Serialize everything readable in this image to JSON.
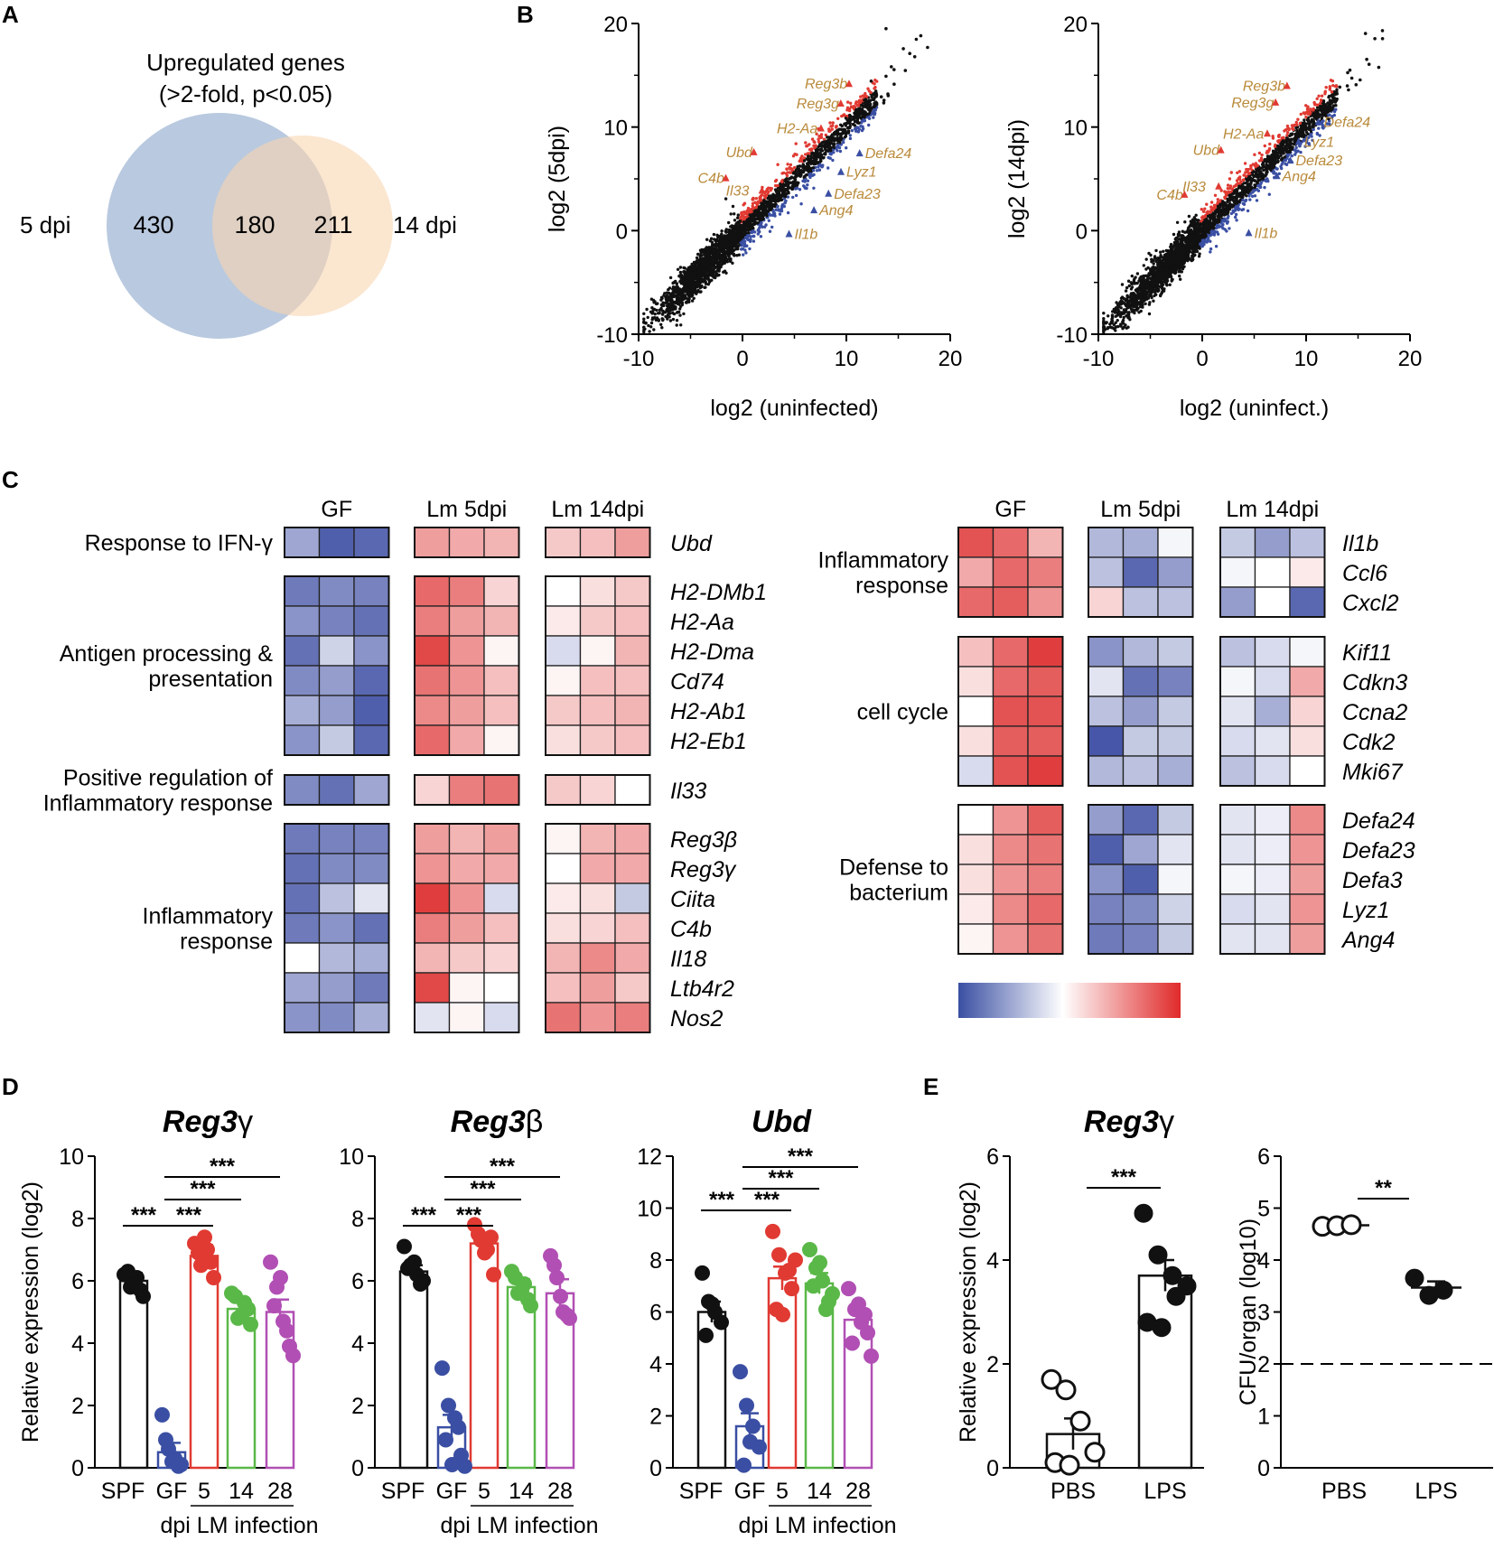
{
  "panels": {
    "A": "A",
    "B": "B",
    "C": "C",
    "D": "D",
    "E": "E"
  },
  "colors": {
    "blue": "#3a4fa3",
    "red": "#e03a32",
    "green": "#5ab848",
    "purple": "#b14fb4",
    "black": "#111111",
    "venn_blue": "#b9c9df",
    "venn_orange": "#f8d5b0",
    "gene_label": "#b98a3a"
  },
  "venn": {
    "title_line1": "Upregulated genes",
    "title_line2": "(>2-fold, p<0.05)",
    "left_label": "5 dpi",
    "right_label": "14 dpi",
    "left_only": "430",
    "overlap": "180",
    "right_only": "211"
  },
  "scatter": [
    {
      "ylabel": "log2 (5dpi)",
      "xlabel": "log2 (uninfected)",
      "xticks": [
        "-10",
        "0",
        "10",
        "20"
      ],
      "yticks": [
        "20",
        "10",
        "0",
        "-10"
      ],
      "labels": [
        {
          "text": "Reg3b",
          "x": 6.0,
          "y": 13.7
        },
        {
          "text": "Reg3g",
          "x": 5.2,
          "y": 11.8
        },
        {
          "text": "H2-Aa",
          "x": 3.3,
          "y": 9.4
        },
        {
          "text": "Ubd",
          "x": -1.6,
          "y": 7.1
        },
        {
          "text": "C4b",
          "x": -4.3,
          "y": 4.6
        },
        {
          "text": "Il33",
          "x": -1.6,
          "y": 3.4
        },
        {
          "text": "Defa24",
          "x": 11.8,
          "y": 7.0
        },
        {
          "text": "Lyz1",
          "x": 10.0,
          "y": 5.2
        },
        {
          "text": "Defa23",
          "x": 8.8,
          "y": 3.1
        },
        {
          "text": "Ang4",
          "x": 7.4,
          "y": 1.5
        },
        {
          "text": "Il1b",
          "x": 5.0,
          "y": -0.8
        }
      ]
    },
    {
      "ylabel": "log2 (14dpi)",
      "xlabel": "log2 (uninfect.)",
      "xticks": [
        "-10",
        "0",
        "10",
        "20"
      ],
      "yticks": [
        "20",
        "10",
        "0",
        "-10"
      ],
      "labels": [
        {
          "text": "Reg3b",
          "x": 3.9,
          "y": 13.5
        },
        {
          "text": "Reg3g",
          "x": 2.8,
          "y": 11.9
        },
        {
          "text": "H2-Aa",
          "x": 2.0,
          "y": 8.9
        },
        {
          "text": "Ubd",
          "x": -0.9,
          "y": 7.3
        },
        {
          "text": "C4b",
          "x": -4.4,
          "y": 3.0
        },
        {
          "text": "Il33",
          "x": -1.9,
          "y": 3.8
        },
        {
          "text": "Defa24",
          "x": 11.7,
          "y": 10.0
        },
        {
          "text": "Lyz1",
          "x": 9.8,
          "y": 8.1
        },
        {
          "text": "Defa23",
          "x": 9.0,
          "y": 6.3
        },
        {
          "text": "Ang4",
          "x": 7.7,
          "y": 4.8
        },
        {
          "text": "Il1b",
          "x": 5.0,
          "y": -0.7
        }
      ]
    }
  ],
  "heatmap": {
    "left": {
      "groups": [
        "GF",
        "Lm 5dpi",
        "Lm 14dpi"
      ],
      "blocks": [
        {
          "label": [
            "Response to IFN-γ"
          ],
          "rows": [
            {
              "gene": "Ubd",
              "v": [
                -0.5,
                -0.9,
                -0.85,
                0.45,
                0.4,
                0.35,
                0.25,
                0.3,
                0.45
              ]
            }
          ]
        },
        {
          "label": [
            "Antigen processing &",
            "presentation"
          ],
          "rows": [
            {
              "gene": "H2-DMb1",
              "v": [
                -0.75,
                -0.65,
                -0.7,
                0.7,
                0.6,
                0.2,
                0.0,
                0.15,
                0.25
              ]
            },
            {
              "gene": "H2-Aa",
              "v": [
                -0.6,
                -0.7,
                -0.8,
                0.6,
                0.45,
                0.35,
                0.1,
                0.25,
                0.3
              ]
            },
            {
              "gene": "H2-Dma",
              "v": [
                -0.8,
                -0.25,
                -0.6,
                0.85,
                0.5,
                0.05,
                -0.2,
                0.05,
                0.35
              ]
            },
            {
              "gene": "Cd74",
              "v": [
                -0.65,
                -0.55,
                -0.85,
                0.65,
                0.5,
                0.3,
                0.05,
                0.3,
                0.3
              ]
            },
            {
              "gene": "H2-Ab1",
              "v": [
                -0.45,
                -0.55,
                -0.9,
                0.55,
                0.45,
                0.3,
                0.25,
                0.3,
                0.35
              ]
            },
            {
              "gene": "H2-Eb1",
              "v": [
                -0.6,
                -0.3,
                -0.85,
                0.7,
                0.4,
                0.05,
                0.15,
                0.25,
                0.3
              ]
            }
          ]
        },
        {
          "label": [
            "Positive regulation of",
            "Inflammatory response"
          ],
          "rows": [
            {
              "gene": "Il33",
              "v": [
                -0.65,
                -0.8,
                -0.5,
                0.2,
                0.6,
                0.65,
                0.25,
                0.2,
                0.0
              ]
            }
          ]
        },
        {
          "label": [
            "Inflammatory",
            "response"
          ],
          "rows": [
            {
              "gene": "Reg3β",
              "v": [
                -0.75,
                -0.7,
                -0.7,
                0.45,
                0.35,
                0.45,
                0.05,
                0.35,
                0.4
              ]
            },
            {
              "gene": "Reg3γ",
              "v": [
                -0.8,
                -0.65,
                -0.65,
                0.5,
                0.4,
                0.4,
                0.0,
                0.4,
                0.4
              ]
            },
            {
              "gene": "Ciita",
              "v": [
                -0.8,
                -0.35,
                -0.15,
                0.9,
                0.5,
                -0.2,
                0.1,
                0.15,
                -0.3
              ]
            },
            {
              "gene": "C4b",
              "v": [
                -0.75,
                -0.6,
                -0.8,
                0.6,
                0.45,
                0.3,
                0.15,
                0.2,
                0.3
              ]
            },
            {
              "gene": "Il18",
              "v": [
                0.0,
                -0.4,
                -0.45,
                0.35,
                0.25,
                0.2,
                0.35,
                0.55,
                0.4
              ]
            },
            {
              "gene": "Ltb4r2",
              "v": [
                -0.5,
                -0.55,
                -0.75,
                0.85,
                0.05,
                0.0,
                0.3,
                0.45,
                0.25
              ]
            },
            {
              "gene": "Nos2",
              "v": [
                -0.6,
                -0.65,
                -0.45,
                -0.15,
                0.05,
                -0.2,
                0.65,
                0.5,
                0.6
              ]
            }
          ]
        }
      ]
    },
    "right": {
      "groups": [
        "GF",
        "Lm 5dpi",
        "Lm 14dpi"
      ],
      "blocks": [
        {
          "label": [
            "Inflammatory",
            "response"
          ],
          "rows": [
            {
              "gene": "Il1b",
              "v": [
                0.8,
                0.7,
                0.35,
                -0.4,
                -0.45,
                -0.05,
                -0.3,
                -0.55,
                -0.35
              ]
            },
            {
              "gene": "Ccl6",
              "v": [
                0.4,
                0.7,
                0.6,
                -0.35,
                -0.85,
                -0.55,
                -0.05,
                0.0,
                0.1
              ]
            },
            {
              "gene": "Cxcl2",
              "v": [
                0.7,
                0.75,
                0.5,
                0.2,
                -0.35,
                -0.35,
                -0.55,
                0.0,
                -0.85
              ]
            }
          ]
        },
        {
          "label": [
            "cell cycle"
          ],
          "rows": [
            {
              "gene": "Kif11",
              "v": [
                0.3,
                0.7,
                0.9,
                -0.6,
                -0.4,
                -0.3,
                -0.35,
                -0.2,
                -0.05
              ]
            },
            {
              "gene": "Cdkn3",
              "v": [
                0.15,
                0.7,
                0.75,
                -0.15,
                -0.8,
                -0.7,
                -0.05,
                -0.2,
                0.4
              ]
            },
            {
              "gene": "Ccna2",
              "v": [
                0.0,
                0.8,
                0.8,
                -0.35,
                -0.55,
                -0.3,
                -0.15,
                -0.45,
                0.2
              ]
            },
            {
              "gene": "Cdk2",
              "v": [
                0.15,
                0.75,
                0.75,
                -0.95,
                -0.3,
                -0.3,
                -0.2,
                -0.15,
                0.15
              ]
            },
            {
              "gene": "Mki67",
              "v": [
                -0.2,
                0.8,
                0.9,
                -0.4,
                -0.35,
                -0.45,
                -0.35,
                -0.2,
                0.0
              ]
            }
          ]
        },
        {
          "label": [
            "Defense to",
            "bacterium"
          ],
          "rows": [
            {
              "gene": "Defa24",
              "v": [
                0.0,
                0.5,
                0.75,
                -0.55,
                -0.85,
                -0.3,
                -0.15,
                -0.1,
                0.55
              ]
            },
            {
              "gene": "Defa23",
              "v": [
                0.15,
                0.55,
                0.65,
                -0.9,
                -0.5,
                -0.15,
                -0.15,
                -0.1,
                0.5
              ]
            },
            {
              "gene": "Defa3",
              "v": [
                0.15,
                0.5,
                0.6,
                -0.6,
                -0.9,
                -0.05,
                -0.05,
                -0.1,
                0.45
              ]
            },
            {
              "gene": "Lyz1",
              "v": [
                0.1,
                0.55,
                0.7,
                -0.7,
                -0.65,
                -0.25,
                -0.2,
                -0.15,
                0.5
              ]
            },
            {
              "gene": "Ang4",
              "v": [
                0.05,
                0.5,
                0.65,
                -0.75,
                -0.7,
                -0.3,
                -0.15,
                -0.15,
                0.45
              ]
            }
          ]
        }
      ]
    }
  },
  "chart_data": [
    {
      "type": "bar",
      "title": "Reg3γ",
      "ylabel": "Relative expression (log2)",
      "ylim": [
        0,
        10
      ],
      "yticks": [
        "0",
        "2",
        "4",
        "6",
        "8",
        "10"
      ],
      "categories": [
        "SPF",
        "GF",
        "5",
        "14",
        "28"
      ],
      "xlabel": "dpi LM infection",
      "values": [
        6.0,
        0.5,
        6.8,
        5.1,
        5.0
      ],
      "errors": [
        0.25,
        0.3,
        0.35,
        0.3,
        0.4
      ],
      "points": [
        [
          6.2,
          5.8,
          6.1,
          5.5,
          6.3,
          5.9,
          5.7
        ],
        [
          1.7,
          0.6,
          0.3,
          0.1,
          0.9,
          0.2,
          0.05
        ],
        [
          7.2,
          6.5,
          7.0,
          6.1,
          6.9,
          7.4,
          6.6
        ],
        [
          5.6,
          4.8,
          5.3,
          4.6,
          5.5,
          4.9,
          5.1
        ],
        [
          6.6,
          5.8,
          4.7,
          3.9,
          5.2,
          6.1,
          4.4,
          3.6
        ]
      ],
      "significance": [
        {
          "from": 0,
          "to": 1,
          "text": "***"
        },
        {
          "from": 1,
          "to": 2,
          "text": "***"
        },
        {
          "from": 1,
          "to": 3,
          "text": "***"
        },
        {
          "from": 1,
          "to": 4,
          "text": "***"
        }
      ]
    },
    {
      "type": "bar",
      "title": "Reg3β",
      "ylabel": "",
      "ylim": [
        0,
        10
      ],
      "yticks": [
        "0",
        "2",
        "4",
        "6",
        "8",
        "10"
      ],
      "categories": [
        "SPF",
        "GF",
        "5",
        "14",
        "28"
      ],
      "xlabel": "dpi LM infection",
      "values": [
        6.3,
        1.3,
        7.2,
        5.8,
        5.6
      ],
      "errors": [
        0.2,
        0.4,
        0.3,
        0.25,
        0.45
      ],
      "points": [
        [
          7.1,
          6.5,
          6.2,
          6.0,
          6.4,
          6.6,
          5.9
        ],
        [
          3.2,
          2.0,
          1.6,
          0.4,
          0.9,
          0.1,
          1.3,
          0.05
        ],
        [
          7.8,
          7.3,
          7.0,
          6.2,
          7.5,
          6.9,
          7.4
        ],
        [
          6.3,
          5.6,
          5.9,
          5.2,
          6.1,
          5.7,
          5.4
        ],
        [
          6.8,
          6.1,
          5.0,
          4.8,
          6.5,
          5.5,
          4.9
        ]
      ],
      "significance": [
        {
          "from": 0,
          "to": 1,
          "text": "***"
        },
        {
          "from": 1,
          "to": 2,
          "text": "***"
        },
        {
          "from": 1,
          "to": 3,
          "text": "***"
        },
        {
          "from": 1,
          "to": 4,
          "text": "***"
        }
      ]
    },
    {
      "type": "bar",
      "title": "Ubd",
      "ylabel": "",
      "ylim": [
        0,
        12
      ],
      "yticks": [
        "0",
        "2",
        "4",
        "6",
        "8",
        "10",
        "12"
      ],
      "categories": [
        "SPF",
        "GF",
        "5",
        "14",
        "28"
      ],
      "xlabel": "dpi LM infection",
      "values": [
        6.0,
        1.6,
        7.3,
        7.1,
        5.7
      ],
      "errors": [
        0.4,
        0.5,
        0.45,
        0.4,
        0.35
      ],
      "points": [
        [
          7.5,
          6.4,
          6.0,
          5.6,
          5.1,
          6.3
        ],
        [
          3.7,
          2.4,
          1.6,
          0.8,
          0.1,
          1.0
        ],
        [
          9.1,
          8.2,
          7.5,
          6.9,
          6.1,
          5.9,
          7.6,
          8.0
        ],
        [
          8.4,
          7.7,
          7.2,
          6.4,
          7.0,
          7.9,
          6.1,
          6.7
        ],
        [
          6.9,
          6.1,
          5.6,
          5.2,
          4.8,
          6.3,
          5.9,
          4.3
        ]
      ],
      "significance": [
        {
          "from": 0,
          "to": 1,
          "text": "***"
        },
        {
          "from": 1,
          "to": 2,
          "text": "***"
        },
        {
          "from": 1,
          "to": 3,
          "text": "***"
        },
        {
          "from": 1,
          "to": 4,
          "text": "***"
        }
      ]
    },
    {
      "type": "bar",
      "title": "Reg3γ",
      "ylabel": "Relative expression (log2)",
      "ylim": [
        0,
        6
      ],
      "yticks": [
        "0",
        "2",
        "4",
        "6"
      ],
      "categories": [
        "PBS",
        "LPS"
      ],
      "values": [
        0.65,
        3.7
      ],
      "errors": [
        0.3,
        0.3
      ],
      "points": [
        [
          1.7,
          1.5,
          0.9,
          0.3,
          0.1,
          0.05
        ],
        [
          4.9,
          4.1,
          3.7,
          3.5,
          2.8,
          2.7,
          3.3
        ]
      ],
      "significance": [
        {
          "from": 0,
          "to": 1,
          "text": "***"
        }
      ]
    },
    {
      "type": "scatter",
      "title": "",
      "ylabel": "CFU/organ (log10)",
      "ylim": [
        0,
        6
      ],
      "yticks": [
        "0",
        "1",
        "2",
        "3",
        "4",
        "5",
        "6"
      ],
      "categories": [
        "PBS",
        "LPS"
      ],
      "means": [
        4.67,
        3.47
      ],
      "errors": [
        0.02,
        0.12
      ],
      "points": [
        [
          4.65,
          4.66,
          4.68
        ],
        [
          3.65,
          3.32,
          3.42
        ]
      ],
      "detection_limit": 2,
      "significance": [
        {
          "from": 0,
          "to": 1,
          "text": "**"
        }
      ]
    }
  ]
}
